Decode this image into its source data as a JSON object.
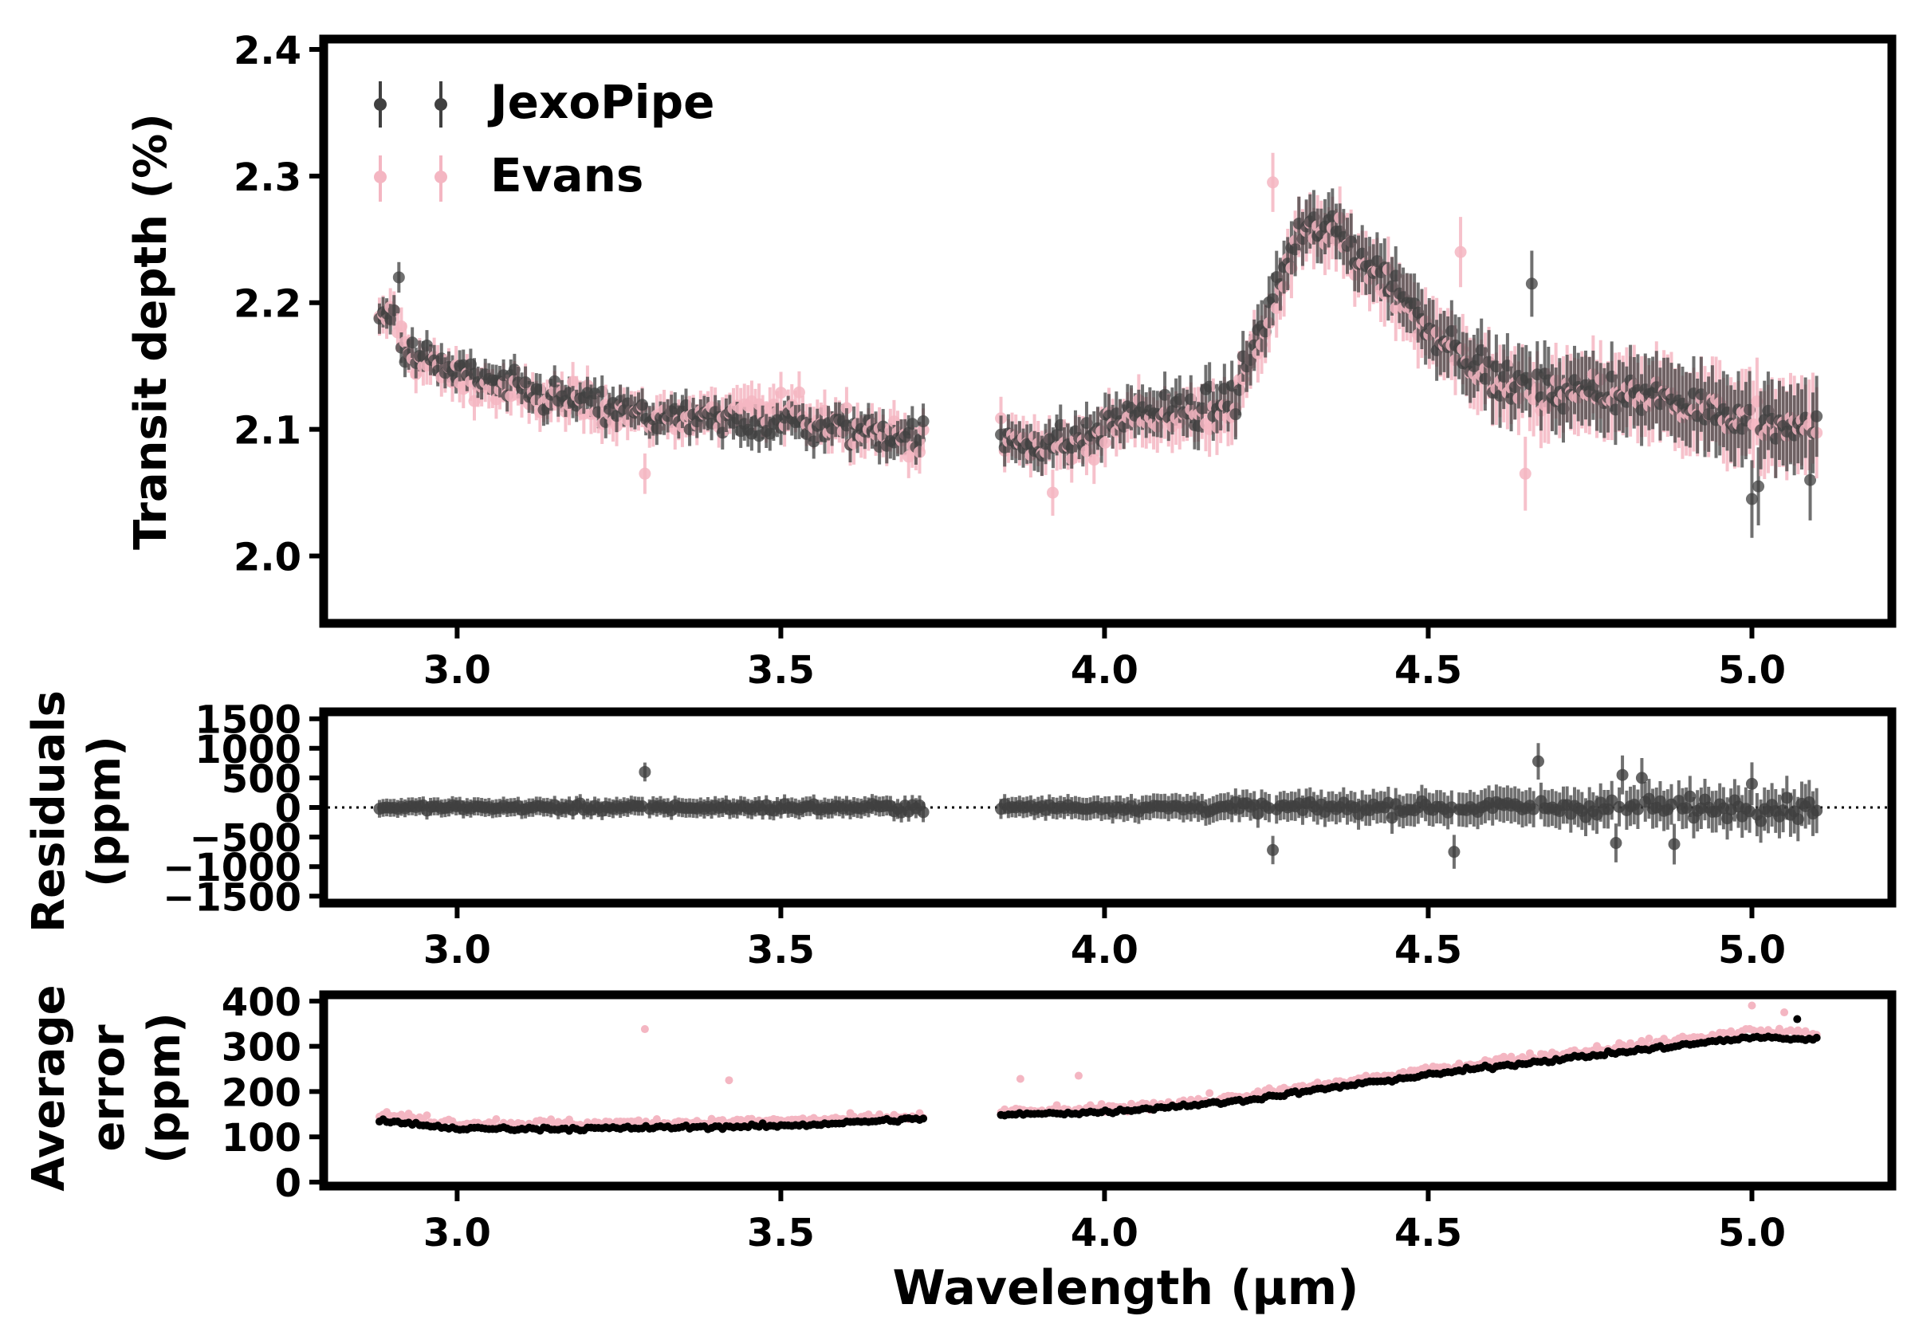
{
  "figure": {
    "xlabel": "Wavelength (μm)",
    "xlim": [
      2.8,
      5.21
    ],
    "x_ticks": [
      3.0,
      3.5,
      4.0,
      4.5,
      5.0
    ],
    "x_tick_labels": [
      "3.0",
      "3.5",
      "4.0",
      "4.5",
      "5.0"
    ],
    "gap": [
      3.72,
      3.84
    ],
    "colors": {
      "jexopipe": "#404040",
      "evans": "#f4b6c2",
      "frame": "#000000"
    }
  },
  "legend": [
    {
      "name": "JexoPipe",
      "color": "#404040"
    },
    {
      "name": "Evans",
      "color": "#f4b6c2"
    }
  ],
  "chart_data": [
    {
      "type": "scatter",
      "panel": "transit",
      "title": "",
      "ylabel": "Transit depth (%)",
      "ylim": [
        1.95,
        2.405
      ],
      "y_ticks": [
        2.0,
        2.1,
        2.2,
        2.3,
        2.4
      ],
      "y_tick_labels": [
        "2.0",
        "2.1",
        "2.2",
        "2.3",
        "2.4"
      ],
      "series": [
        {
          "name": "JexoPipe",
          "color": "#404040",
          "error": {
            "nrs1_start": 0.012,
            "nrs1_end": 0.014,
            "nrs2_start": 0.015,
            "nrs2_end": 0.032
          },
          "anchors": [
            [
              2.88,
              2.185
            ],
            [
              2.9,
              2.2
            ],
            [
              2.92,
              2.16
            ],
            [
              2.95,
              2.155
            ],
            [
              3.0,
              2.145
            ],
            [
              3.1,
              2.13
            ],
            [
              3.2,
              2.12
            ],
            [
              3.3,
              2.11
            ],
            [
              3.4,
              2.105
            ],
            [
              3.5,
              2.105
            ],
            [
              3.6,
              2.1
            ],
            [
              3.72,
              2.095
            ],
            [
              3.84,
              2.09
            ],
            [
              3.95,
              2.09
            ],
            [
              4.05,
              2.115
            ],
            [
              4.15,
              2.115
            ],
            [
              4.2,
              2.125
            ],
            [
              4.25,
              2.19
            ],
            [
              4.3,
              2.255
            ],
            [
              4.35,
              2.26
            ],
            [
              4.4,
              2.235
            ],
            [
              4.45,
              2.215
            ],
            [
              4.5,
              2.18
            ],
            [
              4.55,
              2.165
            ],
            [
              4.6,
              2.14
            ],
            [
              4.7,
              2.13
            ],
            [
              4.8,
              2.13
            ],
            [
              4.9,
              2.12
            ],
            [
              5.0,
              2.11
            ],
            [
              5.1,
              2.1
            ]
          ],
          "noise": 0.015
        },
        {
          "name": "Evans",
          "color": "#f4b6c2",
          "error": {
            "nrs1_start": 0.015,
            "nrs1_end": 0.017,
            "nrs2_start": 0.017,
            "nrs2_end": 0.036
          },
          "anchors": [
            [
              2.88,
              2.18
            ],
            [
              2.9,
              2.195
            ],
            [
              2.92,
              2.165
            ],
            [
              2.95,
              2.15
            ],
            [
              3.0,
              2.14
            ],
            [
              3.1,
              2.125
            ],
            [
              3.2,
              2.12
            ],
            [
              3.3,
              2.11
            ],
            [
              3.4,
              2.11
            ],
            [
              3.5,
              2.115
            ],
            [
              3.6,
              2.105
            ],
            [
              3.72,
              2.09
            ],
            [
              3.84,
              2.09
            ],
            [
              3.95,
              2.085
            ],
            [
              4.05,
              2.11
            ],
            [
              4.15,
              2.11
            ],
            [
              4.2,
              2.12
            ],
            [
              4.25,
              2.18
            ],
            [
              4.3,
              2.25
            ],
            [
              4.35,
              2.255
            ],
            [
              4.4,
              2.23
            ],
            [
              4.45,
              2.21
            ],
            [
              4.5,
              2.175
            ],
            [
              4.55,
              2.16
            ],
            [
              4.6,
              2.135
            ],
            [
              4.7,
              2.125
            ],
            [
              4.8,
              2.13
            ],
            [
              4.9,
              2.12
            ],
            [
              5.0,
              2.105
            ],
            [
              5.1,
              2.1
            ]
          ],
          "noise": 0.016
        }
      ],
      "highlighted_points": [
        {
          "series": "JexoPipe",
          "x": 2.91,
          "y": 2.22
        },
        {
          "series": "JexoPipe",
          "x": 4.66,
          "y": 2.215
        },
        {
          "series": "JexoPipe",
          "x": 5.0,
          "y": 2.045
        },
        {
          "series": "JexoPipe",
          "x": 5.01,
          "y": 2.055
        },
        {
          "series": "JexoPipe",
          "x": 5.09,
          "y": 2.06
        },
        {
          "series": "Evans",
          "x": 3.29,
          "y": 2.065
        },
        {
          "series": "Evans",
          "x": 4.26,
          "y": 2.295
        },
        {
          "series": "Evans",
          "x": 4.55,
          "y": 2.24
        },
        {
          "series": "Evans",
          "x": 3.92,
          "y": 2.05
        },
        {
          "series": "Evans",
          "x": 4.65,
          "y": 2.065
        }
      ]
    },
    {
      "type": "scatter",
      "panel": "residuals",
      "title": "",
      "ylabel": [
        "Residuals",
        "(ppm)"
      ],
      "ylim": [
        -1550,
        1550
      ],
      "y_ticks": [
        -1500,
        -1000,
        -500,
        0,
        500,
        1000,
        1500
      ],
      "y_tick_labels": [
        "−1500",
        "−1000",
        "−500",
        "0",
        "500",
        "1000",
        "1500"
      ],
      "zero_line": true,
      "series": [
        {
          "name": "JexoPipe",
          "color": "#404040",
          "error": {
            "nrs1_start": 150,
            "nrs1_end": 170,
            "nrs2_start": 170,
            "nrs2_end": 380
          },
          "scatter_sd": {
            "nrs1_start": 55,
            "nrs1_end": 90,
            "nrs2_start": 60,
            "nrs2_end": 230
          }
        }
      ],
      "outliers": [
        {
          "x": 3.29,
          "y": 600
        },
        {
          "x": 4.26,
          "y": -720
        },
        {
          "x": 4.54,
          "y": -750
        },
        {
          "x": 4.67,
          "y": 780
        },
        {
          "x": 4.8,
          "y": 550
        },
        {
          "x": 4.83,
          "y": 500
        },
        {
          "x": 4.79,
          "y": -600
        },
        {
          "x": 4.88,
          "y": -620
        },
        {
          "x": 5.0,
          "y": 400
        }
      ]
    },
    {
      "type": "scatter",
      "panel": "error",
      "title": "",
      "ylabel": [
        "Average",
        "error",
        "(ppm)"
      ],
      "ylim": [
        0,
        405
      ],
      "y_ticks": [
        0,
        100,
        200,
        300,
        400
      ],
      "y_tick_labels": [
        "0",
        "100",
        "200",
        "300",
        "400"
      ],
      "series": [
        {
          "name": "Evans",
          "color": "#f4b6c2",
          "trend": [
            [
              2.88,
              150
            ],
            [
              3.0,
              132
            ],
            [
              3.2,
              130
            ],
            [
              3.5,
              136
            ],
            [
              3.72,
              145
            ],
            [
              3.84,
              155
            ],
            [
              4.0,
              162
            ],
            [
              4.2,
              188
            ],
            [
              4.4,
              228
            ],
            [
              4.6,
              268
            ],
            [
              4.8,
              300
            ],
            [
              5.0,
              335
            ],
            [
              5.1,
              330
            ]
          ],
          "jitter": 6
        },
        {
          "name": "JexoPipe",
          "color": "#000000",
          "trend": [
            [
              2.88,
              135
            ],
            [
              3.0,
              118
            ],
            [
              3.2,
              118
            ],
            [
              3.5,
              124
            ],
            [
              3.72,
              140
            ],
            [
              3.84,
              148
            ],
            [
              4.0,
              155
            ],
            [
              4.2,
              178
            ],
            [
              4.4,
              218
            ],
            [
              4.6,
              255
            ],
            [
              4.8,
              287
            ],
            [
              5.0,
              320
            ],
            [
              5.1,
              315
            ]
          ],
          "jitter": 3
        }
      ],
      "outliers": [
        {
          "series": "Evans",
          "x": 3.29,
          "y": 338
        },
        {
          "series": "Evans",
          "x": 3.42,
          "y": 225
        },
        {
          "series": "Evans",
          "x": 3.87,
          "y": 228
        },
        {
          "series": "Evans",
          "x": 3.96,
          "y": 235
        },
        {
          "series": "Evans",
          "x": 5.0,
          "y": 390
        },
        {
          "series": "Evans",
          "x": 5.05,
          "y": 375
        },
        {
          "series": "JexoPipe",
          "x": 5.07,
          "y": 360
        }
      ]
    }
  ]
}
